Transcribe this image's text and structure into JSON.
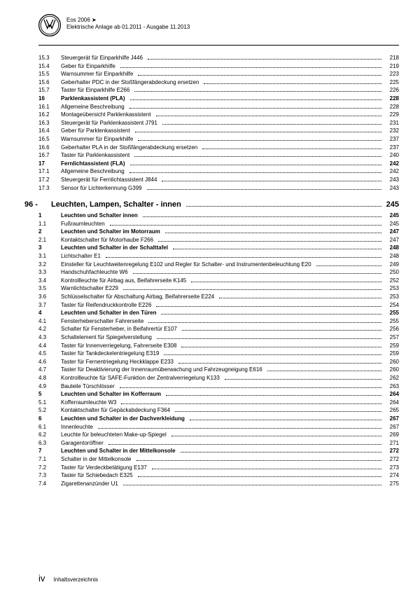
{
  "header": {
    "model": "Eos 2006 ➤",
    "subtitle": "Elektrische Anlage ab 01.2011 - Ausgabe 11.2013"
  },
  "toc": [
    {
      "num": "15.3",
      "title": "Steuergerät für Einparkhilfe J446",
      "page": "218"
    },
    {
      "num": "15.4",
      "title": "Geber für Einparkhilfe",
      "page": "219"
    },
    {
      "num": "15.5",
      "title": "Warnsummer für Einparkhilfe",
      "page": "223"
    },
    {
      "num": "15.6",
      "title": "Geberhalter PDC in der Stoßfängerabdeckung ersetzen",
      "page": "225"
    },
    {
      "num": "15.7",
      "title": "Taster für Einparkhilfe E266",
      "page": "226"
    },
    {
      "num": "16",
      "title": "Parklenkassistent (PLA)",
      "page": "228",
      "bold": true
    },
    {
      "num": "16.1",
      "title": "Allgemeine Beschreibung",
      "page": "228"
    },
    {
      "num": "16.2",
      "title": "Montageübersicht Parklenkassistent",
      "page": "229"
    },
    {
      "num": "16.3",
      "title": "Steuergerät für Parklenkassistent J791",
      "page": "231"
    },
    {
      "num": "16.4",
      "title": "Geber für Parklenkassistent",
      "page": "232"
    },
    {
      "num": "16.5",
      "title": "Warnsummer für Einparkhilfe",
      "page": "237"
    },
    {
      "num": "16.6",
      "title": "Geberhalter PLA in der Stoßfängerabdeckung ersetzen",
      "page": "237"
    },
    {
      "num": "16.7",
      "title": "Taster für Parklenkassistent",
      "page": "240"
    },
    {
      "num": "17",
      "title": "Fernlichtassistent (FLA)",
      "page": "242",
      "bold": true
    },
    {
      "num": "17.1",
      "title": "Allgemeine Beschreibung",
      "page": "242"
    },
    {
      "num": "17.2",
      "title": "Steuergerät für Fernlichtassistent J844",
      "page": "243"
    },
    {
      "num": "17.3",
      "title": "Sensor für Lichterkennung G399",
      "page": "243"
    }
  ],
  "chapter": {
    "num": "96 -",
    "title": "Leuchten, Lampen, Schalter - innen",
    "page": "245"
  },
  "toc2": [
    {
      "num": "1",
      "title": "Leuchten und Schalter innen",
      "page": "245",
      "bold": true
    },
    {
      "num": "1.1",
      "title": "Fußraumleuchten",
      "page": "245"
    },
    {
      "num": "2",
      "title": "Leuchten und Schalter im Motorraum",
      "page": "247",
      "bold": true
    },
    {
      "num": "2.1",
      "title": "Kontaktschalter für Motorhaube F266",
      "page": "247"
    },
    {
      "num": "3",
      "title": "Leuchten und Schalter in der Schalttafel",
      "page": "248",
      "bold": true
    },
    {
      "num": "3.1",
      "title": "Lichtschalter E1",
      "page": "248"
    },
    {
      "num": "3.2",
      "title": "Einsteller für Leuchtweitenregelung E102 und Regler für Schalter- und Instrumentenbeleuchtung E20",
      "page": "249",
      "multi": true
    },
    {
      "num": "3.3",
      "title": "Handschuhfachleuchte W6",
      "page": "250"
    },
    {
      "num": "3.4",
      "title": "Kontrollleuchte für Airbag aus, Beifahrerseite K145",
      "page": "252"
    },
    {
      "num": "3.5",
      "title": "Warnlichtschalter E229",
      "page": "253"
    },
    {
      "num": "3.6",
      "title": "Schlüsselschalter für Abschaltung Airbag, Beifahrerseite E224",
      "page": "253"
    },
    {
      "num": "3.7",
      "title": "Taster für Reifendruckkontrolle E226",
      "page": "254"
    },
    {
      "num": "4",
      "title": "Leuchten und Schalter in den Türen",
      "page": "255",
      "bold": true
    },
    {
      "num": "4.1",
      "title": "Fensterheberschalter Fahrerseite",
      "page": "255"
    },
    {
      "num": "4.2",
      "title": "Schalter für Fensterheber, in Beifahrertür E107",
      "page": "256"
    },
    {
      "num": "4.3",
      "title": "Schaltelement für Spiegelverstellung",
      "page": "257"
    },
    {
      "num": "4.4",
      "title": "Taster für Innenverriegelung, Fahrerseite E308",
      "page": "259"
    },
    {
      "num": "4.5",
      "title": "Taster für Tankdeckelentriegelung E319",
      "page": "259"
    },
    {
      "num": "4.6",
      "title": "Taster für Fernentriegelung Heckklappe E233",
      "page": "260"
    },
    {
      "num": "4.7",
      "title": "Taster für Deaktivierung der Innenraumüberwachung und Fahrzeugneigung E616",
      "page": "260"
    },
    {
      "num": "4.8",
      "title": "Kontrollleuchte für SAFE-Funktion der Zentralverriegelung K133",
      "page": "262"
    },
    {
      "num": "4.9",
      "title": "Bauteile Türschlösser",
      "page": "263"
    },
    {
      "num": "5",
      "title": "Leuchten und Schalter im Kofferraum",
      "page": "264",
      "bold": true
    },
    {
      "num": "5.1",
      "title": "Kofferraumleuchte W3",
      "page": "264"
    },
    {
      "num": "5.2",
      "title": "Kontaktschalter für Gepäckabdeckung F364",
      "page": "265"
    },
    {
      "num": "6",
      "title": "Leuchten und Schalter in der Dachverkleidung",
      "page": "267",
      "bold": true
    },
    {
      "num": "6.1",
      "title": "Innenleuchte",
      "page": "267"
    },
    {
      "num": "6.2",
      "title": "Leuchte für beleuchteten Make-up-Spiegel",
      "page": "269"
    },
    {
      "num": "6.3",
      "title": "Garagentoröffner",
      "page": "271"
    },
    {
      "num": "7",
      "title": "Leuchten und Schalter in der Mittelkonsole",
      "page": "272",
      "bold": true
    },
    {
      "num": "7.1",
      "title": "Schalter in der Mittelkonsole",
      "page": "272"
    },
    {
      "num": "7.2",
      "title": "Taster für Verdeckbetätigung E137",
      "page": "273"
    },
    {
      "num": "7.3",
      "title": "Taster für Schiebedach E325",
      "page": "274"
    },
    {
      "num": "7.4",
      "title": "Zigarettenanzünder U1",
      "page": "275"
    }
  ],
  "footer": {
    "roman": "iv",
    "label": "Inhaltsverzeichnis"
  }
}
